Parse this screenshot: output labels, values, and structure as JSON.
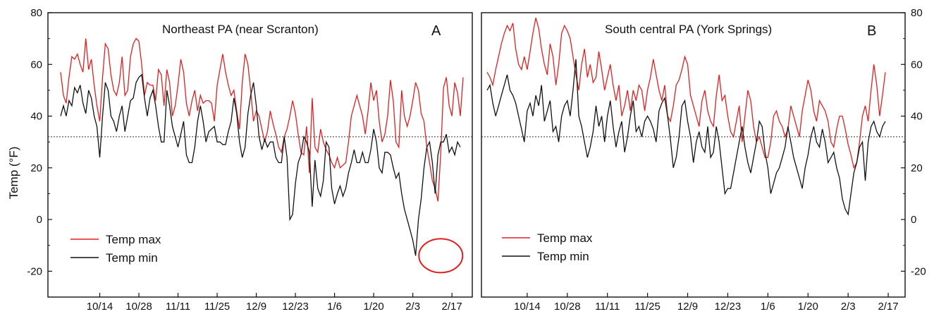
{
  "chart_data": {
    "type": "line",
    "ylabel": "Temp (°F)",
    "ylim": [
      -30,
      80
    ],
    "yticks": [
      -20,
      0,
      20,
      40,
      60,
      80
    ],
    "x_tick_labels": [
      "10/14",
      "10/28",
      "11/11",
      "11/25",
      "12/9",
      "12/23",
      "1/6",
      "1/20",
      "2/3",
      "2/17"
    ],
    "reference_line_value": 32,
    "colors": {
      "max": "#e02020",
      "min": "#111111",
      "annotation": "#e02020"
    },
    "panels": [
      {
        "title": "Northeast PA (near Scranton)",
        "letter": "A",
        "y_axis_side": "left",
        "legend": {
          "position": "bottom-left",
          "entries": [
            "Temp max",
            "Temp min"
          ]
        },
        "x_start_day": 0,
        "annotation": {
          "type": "circle",
          "day": 136,
          "value": -14
        },
        "series": [
          {
            "name": "Temp max",
            "values": [
              57,
              48,
              45,
              55,
              63,
              62,
              64,
              60,
              57,
              70,
              58,
              62,
              52,
              44,
              38,
              55,
              68,
              66,
              56,
              50,
              48,
              53,
              63,
              48,
              50,
              63,
              68,
              70,
              69,
              60,
              48,
              53,
              52,
              52,
              46,
              58,
              56,
              44,
              58,
              53,
              40,
              44,
              52,
              62,
              57,
              45,
              40,
              46,
              50,
              42,
              48,
              45,
              46,
              46,
              45,
              38,
              52,
              58,
              64,
              57,
              52,
              48,
              50,
              42,
              35,
              53,
              64,
              60,
              50,
              38,
              42,
              40,
              35,
              30,
              34,
              42,
              37,
              33,
              28,
              26,
              32,
              35,
              40,
              46,
              41,
              33,
              26,
              25,
              36,
              18,
              47,
              28,
              26,
              35,
              30,
              27,
              25,
              22,
              20,
              24,
              20,
              21,
              22,
              30,
              40,
              44,
              48,
              44,
              40,
              33,
              42,
              53,
              46,
              50,
              38,
              30,
              33,
              40,
              54,
              46,
              30,
              28,
              50,
              40,
              36,
              40,
              46,
              53,
              50,
              41,
              38,
              28,
              22,
              15,
              12,
              7,
              26,
              51,
              55,
              44,
              40,
              53,
              49,
              40,
              55
            ]
          },
          {
            "name": "Temp min",
            "values": [
              40,
              44,
              40,
              46,
              44,
              51,
              49,
              52,
              45,
              41,
              50,
              47,
              40,
              36,
              24,
              40,
              53,
              50,
              40,
              38,
              34,
              40,
              44,
              34,
              40,
              46,
              47,
              53,
              55,
              56,
              47,
              40,
              47,
              50,
              44,
              36,
              30,
              30,
              50,
              44,
              36,
              32,
              28,
              33,
              38,
              25,
              22,
              22,
              28,
              38,
              44,
              38,
              30,
              34,
              35,
              36,
              30,
              30,
              29,
              29,
              34,
              38,
              47,
              41,
              30,
              24,
              28,
              41,
              48,
              53,
              44,
              32,
              27,
              31,
              28,
              30,
              30,
              24,
              22,
              22,
              32,
              24,
              0,
              2,
              14,
              22,
              25,
              32,
              30,
              26,
              5,
              23,
              12,
              9,
              15,
              30,
              28,
              12,
              6,
              10,
              13,
              9,
              12,
              18,
              22,
              27,
              22,
              22,
              26,
              22,
              22,
              27,
              35,
              30,
              20,
              18,
              26,
              26,
              25,
              20,
              16,
              18,
              10,
              4,
              0,
              -4,
              -8,
              -14,
              0,
              8,
              20,
              28,
              30,
              22,
              10,
              25,
              30,
              30,
              33,
              26,
              28,
              25,
              30,
              28
            ]
          }
        ]
      },
      {
        "title": "South central PA (York Springs)",
        "letter": "B",
        "y_axis_side": "right",
        "legend": {
          "position": "bottom-left",
          "entries": [
            "Temp max",
            "Temp min"
          ]
        },
        "x_start_day": 0,
        "annotation": null,
        "series": [
          {
            "name": "Temp max",
            "values": [
              57,
              55,
              52,
              58,
              63,
              68,
              72,
              75,
              73,
              76,
              66,
              60,
              58,
              63,
              58,
              65,
              72,
              78,
              74,
              66,
              60,
              56,
              68,
              63,
              52,
              60,
              72,
              75,
              73,
              70,
              63,
              56,
              50,
              60,
              66,
              55,
              60,
              53,
              55,
              65,
              58,
              50,
              55,
              60,
              52,
              46,
              52,
              40,
              44,
              50,
              42,
              50,
              46,
              52,
              50,
              42,
              50,
              55,
              62,
              56,
              50,
              46,
              52,
              40,
              38,
              44,
              52,
              54,
              58,
              63,
              60,
              48,
              44,
              40,
              36,
              46,
              50,
              42,
              38,
              36,
              48,
              56,
              46,
              48,
              40,
              34,
              32,
              38,
              44,
              30,
              40,
              50,
              46,
              36,
              30,
              32,
              28,
              24,
              24,
              30,
              40,
              42,
              38,
              36,
              32,
              35,
              44,
              40,
              36,
              32,
              42,
              48,
              54,
              50,
              42,
              38,
              46,
              44,
              42,
              38,
              30,
              28,
              35,
              40,
              40,
              35,
              29,
              25,
              20,
              22,
              30,
              40,
              44,
              38,
              50,
              60,
              52,
              40,
              48,
              57
            ]
          },
          {
            "name": "Temp min",
            "values": [
              50,
              52,
              45,
              40,
              44,
              48,
              52,
              56,
              50,
              48,
              45,
              40,
              35,
              30,
              42,
              45,
              40,
              48,
              44,
              52,
              38,
              42,
              46,
              34,
              36,
              30,
              40,
              44,
              46,
              40,
              50,
              62,
              40,
              36,
              30,
              24,
              28,
              34,
              44,
              36,
              40,
              30,
              40,
              46,
              36,
              28,
              34,
              38,
              26,
              32,
              40,
              46,
              34,
              36,
              32,
              38,
              40,
              38,
              35,
              30,
              42,
              45,
              47,
              40,
              31,
              20,
              24,
              32,
              44,
              46,
              38,
              32,
              22,
              30,
              34,
              28,
              26,
              36,
              24,
              26,
              36,
              30,
              20,
              10,
              12,
              12,
              18,
              24,
              30,
              36,
              28,
              22,
              18,
              24,
              30,
              38,
              36,
              26,
              20,
              10,
              14,
              18,
              20,
              24,
              28,
              36,
              30,
              24,
              20,
              16,
              12,
              20,
              25,
              32,
              36,
              30,
              28,
              35,
              30,
              22,
              24,
              26,
              20,
              16,
              8,
              4,
              2,
              10,
              18,
              22,
              28,
              30,
              15,
              30,
              36,
              38,
              34,
              32,
              36,
              38
            ]
          }
        ]
      }
    ]
  }
}
